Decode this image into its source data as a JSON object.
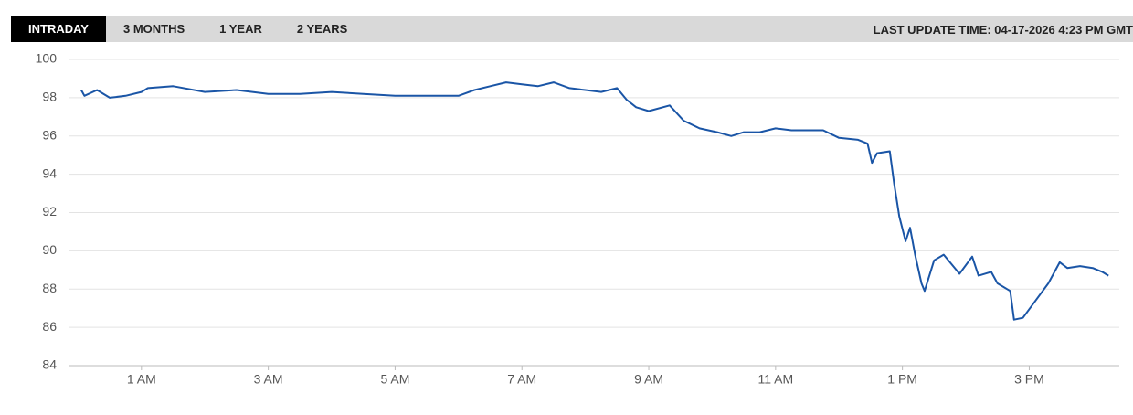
{
  "header": {
    "tabs": [
      "INTRADAY",
      "3 MONTHS",
      "1 YEAR",
      "2 YEARS"
    ],
    "last_update": "LAST UPDATE TIME: 04-17-2026 4:23 PM GMT"
  },
  "chart_data": {
    "type": "line",
    "color": "#1a55a6",
    "x": [
      0.05,
      0.1,
      0.3,
      0.5,
      0.75,
      1.0,
      1.1,
      1.5,
      2.0,
      2.5,
      3.0,
      3.5,
      4.0,
      4.5,
      5.0,
      5.5,
      6.0,
      6.25,
      6.5,
      6.75,
      7.0,
      7.25,
      7.5,
      7.75,
      8.0,
      8.25,
      8.5,
      8.65,
      8.8,
      9.0,
      9.33,
      9.55,
      9.8,
      10.08,
      10.3,
      10.5,
      10.75,
      11.0,
      11.25,
      11.5,
      11.75,
      12.0,
      12.3,
      12.45,
      12.52,
      12.6,
      12.8,
      12.87,
      12.95,
      13.05,
      13.12,
      13.2,
      13.3,
      13.35,
      13.5,
      13.65,
      13.9,
      14.1,
      14.2,
      14.4,
      14.5,
      14.7,
      14.76,
      14.9,
      15.1,
      15.3,
      15.48,
      15.6,
      15.8,
      16.0,
      16.15,
      16.25
    ],
    "values": [
      98.4,
      98.1,
      98.4,
      98.0,
      98.1,
      98.3,
      98.5,
      98.6,
      98.3,
      98.4,
      98.2,
      98.2,
      98.3,
      98.2,
      98.1,
      98.1,
      98.1,
      98.4,
      98.6,
      98.8,
      98.7,
      98.6,
      98.8,
      98.5,
      98.4,
      98.3,
      98.5,
      97.9,
      97.5,
      97.3,
      97.6,
      96.8,
      96.4,
      96.2,
      96.0,
      96.2,
      96.2,
      96.4,
      96.3,
      96.3,
      96.3,
      95.9,
      95.8,
      95.6,
      94.6,
      95.1,
      95.2,
      93.5,
      91.8,
      90.5,
      91.2,
      89.8,
      88.3,
      87.9,
      89.5,
      89.8,
      88.8,
      89.7,
      88.7,
      88.9,
      88.3,
      87.9,
      86.4,
      86.5,
      87.4,
      88.3,
      89.4,
      89.1,
      89.2,
      89.1,
      88.9,
      88.7
    ],
    "xlim": [
      -0.15,
      16.42
    ],
    "ylim": [
      84,
      100
    ],
    "xticks": [
      {
        "value": 1,
        "label": "1 AM"
      },
      {
        "value": 3,
        "label": "3 AM"
      },
      {
        "value": 5,
        "label": "5 AM"
      },
      {
        "value": 7,
        "label": "7 AM"
      },
      {
        "value": 9,
        "label": "9 AM"
      },
      {
        "value": 11,
        "label": "11 AM"
      },
      {
        "value": 13,
        "label": "1 PM"
      },
      {
        "value": 15,
        "label": "3 PM"
      }
    ],
    "yticks": [
      84,
      86,
      88,
      90,
      92,
      94,
      96,
      98,
      100
    ],
    "grid": true
  }
}
